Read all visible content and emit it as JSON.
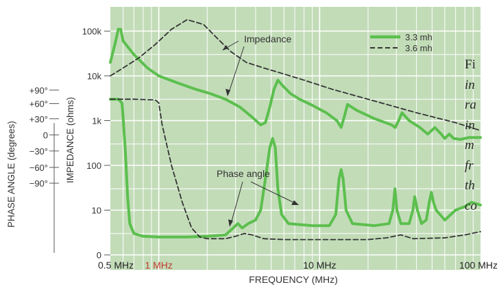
{
  "caption_lines": [
    "Fi",
    "in",
    "ra",
    "in",
    "m",
    "fr",
    "th",
    "co"
  ],
  "chart_data": {
    "type": "line",
    "title": "",
    "xlabel": "FREQUENCY (MHz)",
    "ylabel": "IMPEDANCE (ohms)",
    "ylabel_secondary": "PHASE ANGLE (degrees)",
    "x_scale": "log",
    "xlim_mhz": [
      0.5,
      100
    ],
    "y_scale": "log",
    "ylim_ohms": [
      1,
      200000
    ],
    "x_tick_labels": [
      {
        "x": 0.5,
        "label": "0.5 MHz",
        "color": "#222222"
      },
      {
        "x": 1,
        "label": "1 MHz",
        "color": "#c0392b"
      },
      {
        "x": 10,
        "label": "10 MHz",
        "color": "#222222"
      },
      {
        "x": 100,
        "label": "100 MHz",
        "color": "#222222"
      }
    ],
    "y_tick_labels": [
      {
        "y": 100000,
        "label": "100k"
      },
      {
        "y": 10000,
        "label": "10k"
      },
      {
        "y": 1000,
        "label": "1k"
      },
      {
        "y": 100,
        "label": "100"
      },
      {
        "y": 10,
        "label": "10"
      },
      {
        "y": 1,
        "label": "0"
      }
    ],
    "phase_tick_labels": [
      {
        "label": "+90°",
        "ohms": 4800
      },
      {
        "label": "+60°",
        "ohms": 2400
      },
      {
        "label": "+30°",
        "ohms": 1100
      },
      {
        "label": "0",
        "ohms": 480
      },
      {
        "label": "−30°",
        "ohms": 210
      },
      {
        "label": "−60°",
        "ohms": 90
      },
      {
        "label": "−90°",
        "ohms": 40
      }
    ],
    "grid": true,
    "plot_background": "#c2dcb8",
    "legend": {
      "position": "top-right",
      "entries": [
        {
          "label": "3.3 mh",
          "style": "solid",
          "color": "#5cbf4e"
        },
        {
          "label": "3.6 mh",
          "style": "dashed",
          "color": "#333333"
        }
      ]
    },
    "annotations": [
      "Impedance",
      "Phase angle"
    ],
    "series": [
      {
        "name": "3.3 mh",
        "kind": "impedance",
        "style": "solid",
        "color": "#5cbf4e",
        "points": [
          [
            0.5,
            20000
          ],
          [
            0.54,
            60000
          ],
          [
            0.56,
            110000
          ],
          [
            0.58,
            110000
          ],
          [
            0.6,
            60000
          ],
          [
            0.7,
            30000
          ],
          [
            0.85,
            15000
          ],
          [
            1,
            10000
          ],
          [
            1.3,
            7000
          ],
          [
            1.7,
            5000
          ],
          [
            2.1,
            4000
          ],
          [
            2.6,
            3000
          ],
          [
            3.2,
            2000
          ],
          [
            3.8,
            1200
          ],
          [
            4.3,
            800
          ],
          [
            4.6,
            900
          ],
          [
            4.9,
            2000
          ],
          [
            5.2,
            5000
          ],
          [
            5.5,
            8000
          ],
          [
            5.9,
            6000
          ],
          [
            6.6,
            4000
          ],
          [
            7.5,
            3000
          ],
          [
            9,
            2200
          ],
          [
            11,
            1500
          ],
          [
            12.8,
            1000
          ],
          [
            13.6,
            700
          ],
          [
            14.3,
            1300
          ],
          [
            14.9,
            2300
          ],
          [
            17,
            1700
          ],
          [
            22,
            1100
          ],
          [
            28,
            800
          ],
          [
            29.5,
            700
          ],
          [
            31,
            1000
          ],
          [
            32.5,
            1500
          ],
          [
            36,
            1000
          ],
          [
            42,
            700
          ],
          [
            47,
            500
          ],
          [
            52,
            700
          ],
          [
            57,
            500
          ],
          [
            60,
            400
          ],
          [
            64,
            500
          ],
          [
            68,
            400
          ],
          [
            75,
            380
          ],
          [
            85,
            420
          ],
          [
            100,
            420
          ]
        ]
      },
      {
        "name": "3.6 mh",
        "kind": "impedance",
        "style": "dashed",
        "color": "#333333",
        "points": [
          [
            0.5,
            10000
          ],
          [
            0.6,
            15000
          ],
          [
            0.75,
            25000
          ],
          [
            0.95,
            50000
          ],
          [
            1.2,
            110000
          ],
          [
            1.5,
            180000
          ],
          [
            1.9,
            140000
          ],
          [
            2.3,
            70000
          ],
          [
            2.8,
            35000
          ],
          [
            3.5,
            20000
          ],
          [
            4.5,
            15000
          ],
          [
            6,
            11000
          ],
          [
            8,
            8000
          ],
          [
            12,
            5000
          ],
          [
            20,
            3000
          ],
          [
            40,
            1500
          ],
          [
            70,
            900
          ],
          [
            100,
            600
          ]
        ]
      },
      {
        "name": "3.3 mh",
        "kind": "phase",
        "style": "solid",
        "color": "#5cbf4e",
        "points": [
          [
            0.5,
            3000
          ],
          [
            0.56,
            3000
          ],
          [
            0.59,
            2500
          ],
          [
            0.6,
            1200
          ],
          [
            0.62,
            200
          ],
          [
            0.64,
            20
          ],
          [
            0.66,
            5
          ],
          [
            0.7,
            3
          ],
          [
            0.8,
            2.6
          ],
          [
            1,
            2.5
          ],
          [
            1.5,
            2.5
          ],
          [
            2,
            2.6
          ],
          [
            2.6,
            2.8
          ],
          [
            2.9,
            4
          ],
          [
            3.1,
            5
          ],
          [
            3.3,
            4
          ],
          [
            3.6,
            5
          ],
          [
            4,
            6
          ],
          [
            4.3,
            10
          ],
          [
            4.6,
            50
          ],
          [
            4.9,
            250
          ],
          [
            5.1,
            400
          ],
          [
            5.3,
            250
          ],
          [
            5.5,
            30
          ],
          [
            5.8,
            8
          ],
          [
            6.4,
            5
          ],
          [
            9,
            4.5
          ],
          [
            11.5,
            4.5
          ],
          [
            12.6,
            8
          ],
          [
            13.2,
            50
          ],
          [
            13.6,
            80
          ],
          [
            14,
            50
          ],
          [
            14.6,
            10
          ],
          [
            16,
            5
          ],
          [
            22,
            4.5
          ],
          [
            27,
            5
          ],
          [
            28.5,
            10
          ],
          [
            29.4,
            30
          ],
          [
            30.2,
            10
          ],
          [
            32,
            5
          ],
          [
            36,
            5
          ],
          [
            38,
            10
          ],
          [
            39,
            20
          ],
          [
            40.5,
            10
          ],
          [
            43,
            5
          ],
          [
            46,
            6
          ],
          [
            48,
            15
          ],
          [
            49.5,
            25
          ],
          [
            51,
            15
          ],
          [
            53,
            10
          ],
          [
            60,
            6
          ],
          [
            70,
            10
          ],
          [
            80,
            12
          ],
          [
            88,
            15
          ],
          [
            100,
            13
          ]
        ]
      },
      {
        "name": "3.6 mh",
        "kind": "phase",
        "style": "dashed",
        "color": "#333333",
        "points": [
          [
            0.5,
            3000
          ],
          [
            0.7,
            3000
          ],
          [
            0.95,
            2900
          ],
          [
            1,
            2500
          ],
          [
            1.05,
            800
          ],
          [
            1.2,
            100
          ],
          [
            1.4,
            15
          ],
          [
            1.6,
            4
          ],
          [
            1.8,
            2.5
          ],
          [
            2,
            2.3
          ],
          [
            2.6,
            2.3
          ],
          [
            3,
            2.6
          ],
          [
            3.4,
            3
          ],
          [
            3.8,
            2.8
          ],
          [
            4.5,
            2.3
          ],
          [
            6,
            2.2
          ],
          [
            20,
            2.2
          ],
          [
            26,
            2.4
          ],
          [
            32,
            2.8
          ],
          [
            38,
            2.3
          ],
          [
            60,
            2.4
          ],
          [
            80,
            2.8
          ],
          [
            100,
            3.3
          ]
        ]
      }
    ]
  }
}
